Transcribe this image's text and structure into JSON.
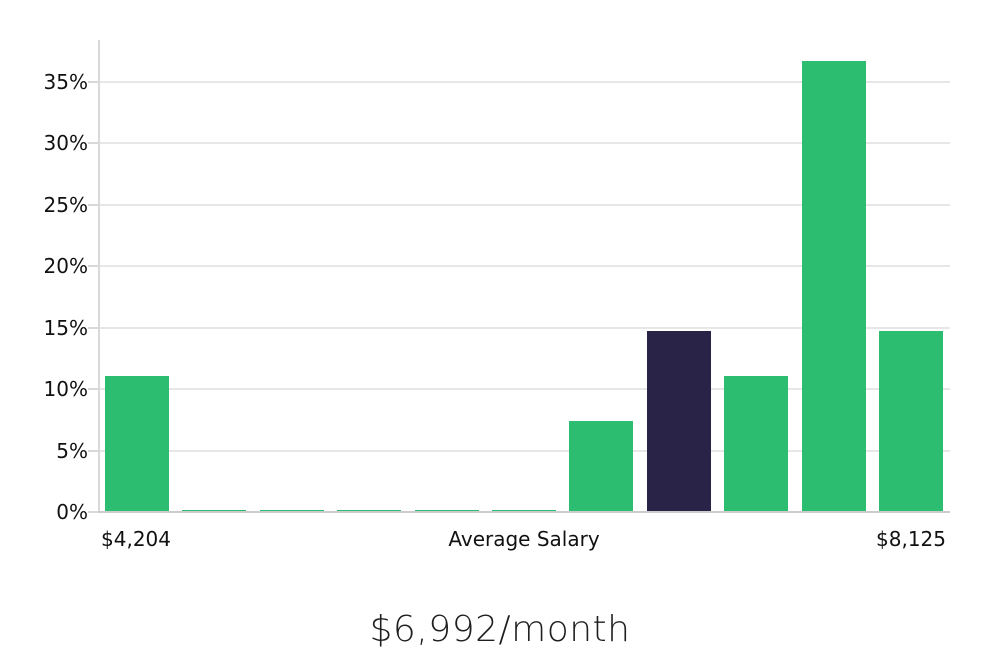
{
  "page": {
    "background": "#ffffff"
  },
  "colors": {
    "bar_green": "#2dbd70",
    "bar_dark": "#292348",
    "gridline": "#e7e7e7",
    "axis_line": "#d9d9d9",
    "baseline": "#cccccc",
    "tick_text": "#111111",
    "title_text": "#1f1f1f"
  },
  "chart_data": {
    "type": "bar",
    "title": "$6,992/month",
    "xlabel": "",
    "ylabel": "",
    "grid": true,
    "legend": false,
    "ylim": [
      0,
      38.4
    ],
    "yticks": [
      0,
      5,
      10,
      15,
      20,
      25,
      30,
      35
    ],
    "ytick_labels": [
      "0%",
      "5%",
      "10%",
      "15%",
      "20%",
      "25%",
      "30%",
      "35%"
    ],
    "xtick_labels": [
      "$4,204",
      "Average Salary",
      "$8,125"
    ],
    "bars": [
      {
        "value": 11.1,
        "color": "green"
      },
      {
        "value": 0.15,
        "color": "green"
      },
      {
        "value": 0.15,
        "color": "green"
      },
      {
        "value": 0.15,
        "color": "green"
      },
      {
        "value": 0.15,
        "color": "green"
      },
      {
        "value": 0.15,
        "color": "green"
      },
      {
        "value": 7.4,
        "color": "green"
      },
      {
        "value": 14.7,
        "color": "dark"
      },
      {
        "value": 11.1,
        "color": "green"
      },
      {
        "value": 36.7,
        "color": "green"
      },
      {
        "value": 14.7,
        "color": "green"
      }
    ]
  }
}
